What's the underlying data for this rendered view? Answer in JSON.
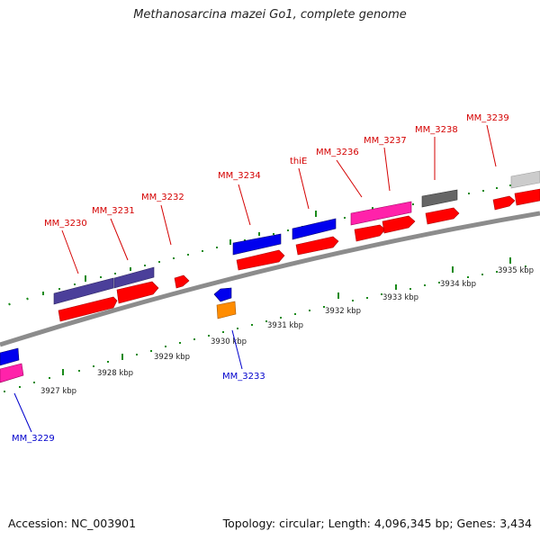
{
  "title": "Methanosarcina mazei Go1, complete genome",
  "footer": {
    "accession": "Accession: NC_003901",
    "summary": "Topology: circular; Length: 4,096,345 bp; Genes: 3,434"
  },
  "colors": {
    "forward_label": "#d40000",
    "reverse_label": "#0000cc",
    "backbone": "#8c8c8c",
    "ticks": "#1a8a1a",
    "red_gene": "#ff0000",
    "blue_gene": "#0000ee",
    "purple_gene": "#4b3f9a",
    "pink_gene": "#ff22aa",
    "orange_gene": "#ff8c00",
    "gray_gene": "#666666",
    "lightgray_gene": "#cccccc"
  },
  "scale_labels": [
    "3927 kbp",
    "3928 kbp",
    "3929 kbp",
    "3930 kbp",
    "3931 kbp",
    "3932 kbp",
    "3933 kbp",
    "3934 kbp",
    "3935 kbp"
  ],
  "forward_genes": [
    "MM_3230",
    "MM_3231",
    "MM_3232",
    "MM_3234",
    "thiE",
    "MM_3236",
    "MM_3237",
    "MM_3238",
    "MM_3239"
  ],
  "reverse_genes": [
    "MM_3229",
    "MM_3233"
  ]
}
